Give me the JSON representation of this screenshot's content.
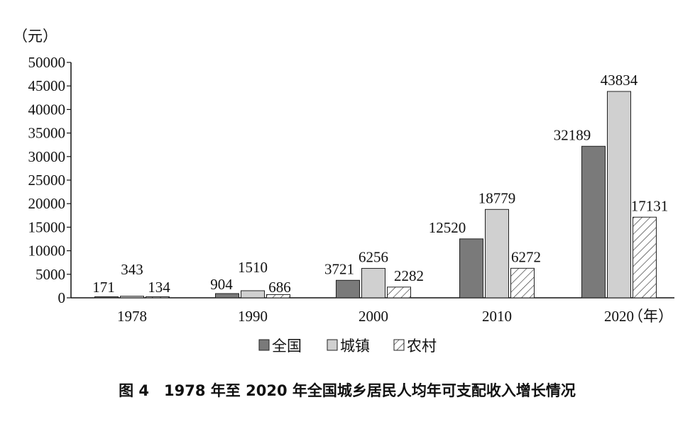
{
  "chart_data": {
    "type": "bar",
    "caption": "图 4　1978 年至 2020 年全国城乡居民人均年可支配收入增长情况",
    "y_unit": "（元）",
    "x_unit": "（年）",
    "categories": [
      "1978",
      "1990",
      "2000",
      "2010",
      "2020"
    ],
    "series": [
      {
        "name": "全国",
        "values": [
          171,
          904,
          3721,
          12520,
          32189
        ],
        "style": "dark-gray",
        "color": "#7a7a7a"
      },
      {
        "name": "城镇",
        "values": [
          343,
          1510,
          6256,
          18779,
          43834
        ],
        "style": "light-gray",
        "color": "#d0d0d0"
      },
      {
        "name": "农村",
        "values": [
          134,
          686,
          2282,
          6272,
          17131
        ],
        "style": "hatched",
        "color": "#ffffff"
      }
    ],
    "ylim": [
      0,
      50000
    ],
    "yticks": [
      0,
      5000,
      10000,
      15000,
      20000,
      25000,
      30000,
      35000,
      40000,
      45000,
      50000
    ],
    "grid": false,
    "legend_position": "bottom"
  }
}
